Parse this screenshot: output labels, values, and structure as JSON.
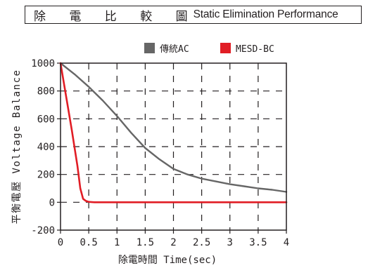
{
  "header": {
    "title_cjk": "除 電 比 較 圖",
    "title_en": "Static Elimination Performance"
  },
  "colors": {
    "grid": "#231f20",
    "series_ac": "#666666",
    "series_mesd": "#e11d25"
  },
  "chart_data": {
    "type": "line",
    "title": "除 電 比 較 圖 Static Elimination Performance",
    "xlabel": "除電時間 Time(sec)",
    "ylabel": "平衡電壓 Voltage Balance",
    "xlim": [
      0,
      4
    ],
    "ylim": [
      -200,
      1000
    ],
    "x_ticks": [
      0,
      0.5,
      1,
      1.5,
      2,
      2.5,
      3,
      3.5,
      4
    ],
    "x_tick_labels": [
      "0",
      "0.5",
      "1",
      "1.5",
      "2",
      "2.5",
      "3",
      "3.5",
      "4"
    ],
    "y_ticks": [
      1000,
      800,
      600,
      400,
      200,
      0,
      -200
    ],
    "y_tick_labels": [
      "1000",
      "800",
      "600",
      "400",
      "200",
      "0",
      "-200"
    ],
    "grid": true,
    "legend_position": "top",
    "series": [
      {
        "name": "傳統AC",
        "color": "#666666",
        "x": [
          0,
          0.25,
          0.5,
          0.75,
          1,
          1.25,
          1.5,
          1.75,
          2,
          2.25,
          2.5,
          2.75,
          3,
          3.25,
          3.5,
          3.75,
          4
        ],
        "y": [
          1000,
          920,
          830,
          730,
          620,
          500,
          390,
          310,
          240,
          200,
          170,
          150,
          130,
          115,
          100,
          90,
          75
        ]
      },
      {
        "name": "MESD-BC",
        "color": "#e11d25",
        "x": [
          0,
          0.1,
          0.2,
          0.3,
          0.35,
          0.4,
          0.45,
          0.5,
          0.6,
          1,
          2,
          3,
          4
        ],
        "y": [
          1000,
          760,
          520,
          260,
          100,
          25,
          10,
          3,
          0,
          0,
          0,
          0,
          0
        ]
      }
    ]
  }
}
